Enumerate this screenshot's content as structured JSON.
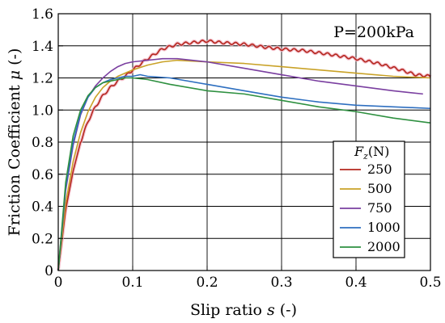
{
  "chart_data": {
    "type": "line",
    "title": "",
    "xlabel": "Slip ratio",
    "xlabel_symbol": "s",
    "xlabel_unit": "(-)",
    "ylabel": "Friction Coefficient",
    "ylabel_symbol": "μ",
    "ylabel_unit": "(-)",
    "xlim": [
      0,
      0.5
    ],
    "ylim": [
      0,
      1.6
    ],
    "xticks": [
      0,
      0.1,
      0.2,
      0.3,
      0.4,
      0.5
    ],
    "yticks": [
      0,
      0.2,
      0.4,
      0.6,
      0.8,
      1.0,
      1.2,
      1.4,
      1.6
    ],
    "xtick_labels": [
      "0",
      "0.1",
      "0.2",
      "0.3",
      "0.4",
      "0.5"
    ],
    "ytick_labels": [
      "0",
      "0.2",
      "0.4",
      "0.6",
      "0.8",
      "1.0",
      "1.2",
      "1.4",
      "1.6"
    ],
    "grid": true,
    "annotation": "P=200kPa",
    "legend": {
      "title_symbol": "F",
      "title_subscript": "z",
      "title_unit": "(N)",
      "placement": "bottom-right"
    },
    "series": [
      {
        "name": "250",
        "color": "#b5271e",
        "wavy": true,
        "x": [
          0,
          0.01,
          0.02,
          0.03,
          0.04,
          0.05,
          0.06,
          0.07,
          0.08,
          0.09,
          0.1,
          0.12,
          0.14,
          0.16,
          0.18,
          0.2,
          0.22,
          0.25,
          0.28,
          0.3,
          0.33,
          0.36,
          0.4,
          0.43,
          0.46,
          0.48,
          0.5
        ],
        "y": [
          0,
          0.38,
          0.62,
          0.8,
          0.93,
          1.02,
          1.09,
          1.14,
          1.18,
          1.21,
          1.25,
          1.32,
          1.38,
          1.41,
          1.42,
          1.43,
          1.42,
          1.41,
          1.39,
          1.38,
          1.37,
          1.35,
          1.32,
          1.29,
          1.25,
          1.22,
          1.21
        ]
      },
      {
        "name": "500",
        "color": "#c9a227",
        "wavy": false,
        "x": [
          0,
          0.01,
          0.02,
          0.03,
          0.04,
          0.05,
          0.06,
          0.07,
          0.08,
          0.09,
          0.1,
          0.12,
          0.14,
          0.16,
          0.2,
          0.25,
          0.3,
          0.35,
          0.4,
          0.45,
          0.5
        ],
        "y": [
          0,
          0.42,
          0.68,
          0.86,
          0.99,
          1.08,
          1.14,
          1.18,
          1.21,
          1.23,
          1.25,
          1.28,
          1.3,
          1.31,
          1.3,
          1.29,
          1.27,
          1.25,
          1.23,
          1.21,
          1.2
        ]
      },
      {
        "name": "750",
        "color": "#7a3fa0",
        "wavy": false,
        "x": [
          0,
          0.01,
          0.02,
          0.03,
          0.04,
          0.05,
          0.06,
          0.07,
          0.08,
          0.09,
          0.1,
          0.12,
          0.14,
          0.16,
          0.2,
          0.25,
          0.3,
          0.35,
          0.4,
          0.45,
          0.49
        ],
        "y": [
          0,
          0.5,
          0.78,
          0.97,
          1.08,
          1.15,
          1.2,
          1.24,
          1.27,
          1.29,
          1.3,
          1.31,
          1.32,
          1.32,
          1.3,
          1.26,
          1.22,
          1.18,
          1.15,
          1.12,
          1.1
        ]
      },
      {
        "name": "1000",
        "color": "#2e6fc0",
        "wavy": false,
        "x": [
          0,
          0.01,
          0.02,
          0.03,
          0.04,
          0.05,
          0.06,
          0.07,
          0.08,
          0.09,
          0.1,
          0.11,
          0.12,
          0.15,
          0.2,
          0.25,
          0.3,
          0.35,
          0.4,
          0.45,
          0.5
        ],
        "y": [
          0,
          0.52,
          0.8,
          0.98,
          1.08,
          1.14,
          1.17,
          1.19,
          1.2,
          1.21,
          1.21,
          1.22,
          1.21,
          1.2,
          1.16,
          1.12,
          1.08,
          1.05,
          1.03,
          1.02,
          1.01
        ]
      },
      {
        "name": "2000",
        "color": "#2e9040",
        "wavy": false,
        "x": [
          0,
          0.01,
          0.02,
          0.03,
          0.04,
          0.05,
          0.06,
          0.07,
          0.08,
          0.09,
          0.1,
          0.12,
          0.15,
          0.2,
          0.25,
          0.3,
          0.35,
          0.4,
          0.45,
          0.5
        ],
        "y": [
          0,
          0.55,
          0.84,
          1.0,
          1.09,
          1.14,
          1.17,
          1.18,
          1.19,
          1.2,
          1.2,
          1.19,
          1.16,
          1.12,
          1.1,
          1.06,
          1.02,
          0.99,
          0.95,
          0.92
        ]
      }
    ]
  }
}
